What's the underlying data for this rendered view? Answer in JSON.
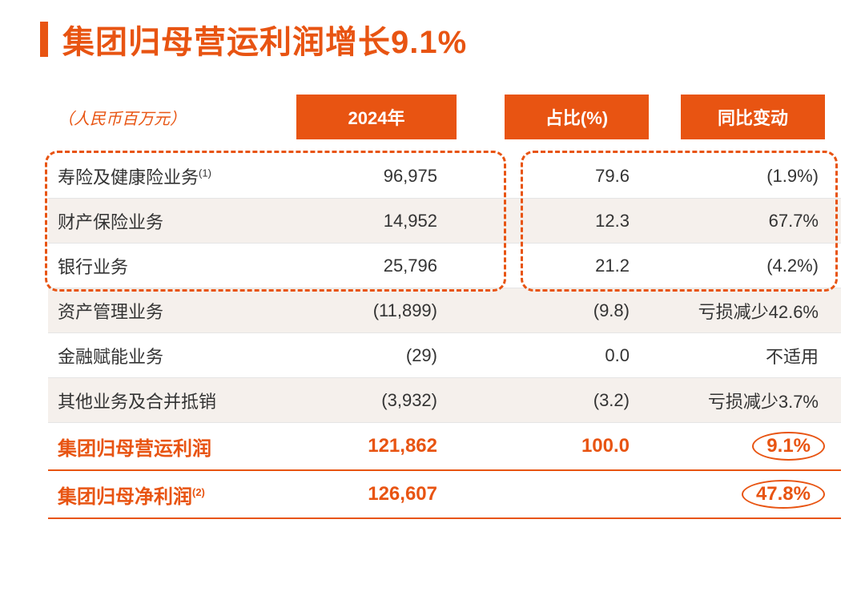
{
  "title": "集团归母营运利润增长9.1%",
  "unit_label": "（人民币百万元）",
  "headers": {
    "year": "2024年",
    "pct": "占比(%)",
    "change": "同比变动"
  },
  "colors": {
    "accent": "#e85412",
    "border": "#e5e5e5",
    "alt_row_bg": "#f5f0ec",
    "text": "#333333",
    "bg": "#ffffff"
  },
  "dashed_box": {
    "rows_covered": 3,
    "stroke": "#e85412",
    "dash": "6 6",
    "radius": 16
  },
  "rows": [
    {
      "label": "寿险及健康险业务",
      "sup": "(1)",
      "year": "96,975",
      "pct": "79.6",
      "change": "(1.9%)"
    },
    {
      "label": "财产保险业务",
      "year": "14,952",
      "pct": "12.3",
      "change": "67.7%"
    },
    {
      "label": "银行业务",
      "year": "25,796",
      "pct": "21.2",
      "change": "(4.2%)"
    },
    {
      "label": "资产管理业务",
      "year": "(11,899)",
      "pct": "(9.8)",
      "change": "亏损减少42.6%"
    },
    {
      "label": "金融赋能业务",
      "year": "(29)",
      "pct": "0.0",
      "change": "不适用"
    },
    {
      "label": "其他业务及合并抵销",
      "year": "(3,932)",
      "pct": "(3.2)",
      "change": "亏损减少3.7%"
    }
  ],
  "summary": [
    {
      "label": "集团归母营运利润",
      "year": "121,862",
      "pct": "100.0",
      "change": "9.1%",
      "oval": true
    },
    {
      "label": "集团归母净利润",
      "sup": "(2)",
      "year": "126,607",
      "pct": "",
      "change": "47.8%",
      "oval": true
    }
  ],
  "typography": {
    "title_fontsize": 40,
    "header_fontsize": 22,
    "row_fontsize": 22,
    "summary_fontsize": 24,
    "unit_fontsize": 20
  }
}
